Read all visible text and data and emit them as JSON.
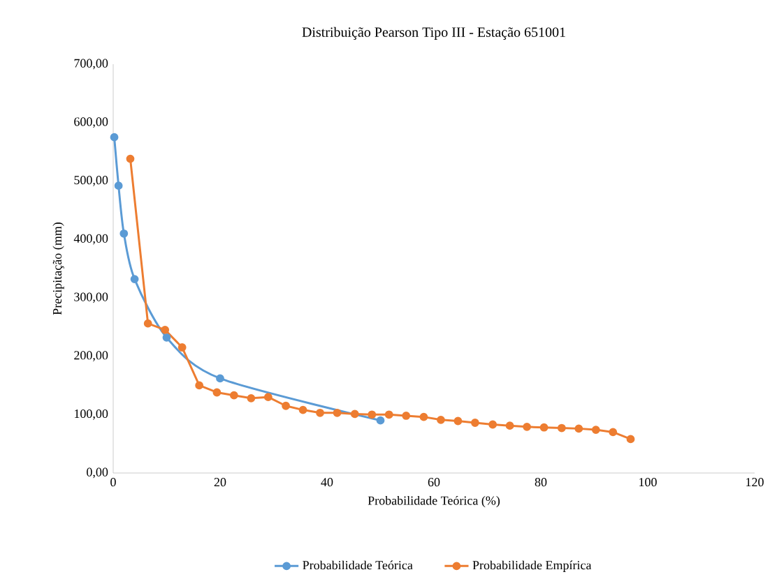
{
  "chart_data": {
    "type": "line",
    "title": "Distribuição Pearson Tipo III - Estação 651001",
    "xlabel": "Probabilidade Teórica (%)",
    "ylabel": "Precipitação (mm)",
    "xlim": [
      0,
      120
    ],
    "xticks": [
      0,
      20,
      40,
      60,
      80,
      100,
      120
    ],
    "ylim": [
      0,
      700
    ],
    "yticks": [
      {
        "value": 0,
        "label": "0,00"
      },
      {
        "value": 100,
        "label": "100,00"
      },
      {
        "value": 200,
        "label": "200,00"
      },
      {
        "value": 300,
        "label": "300,00"
      },
      {
        "value": 400,
        "label": "400,00"
      },
      {
        "value": 500,
        "label": "500,00"
      },
      {
        "value": 600,
        "label": "600,00"
      },
      {
        "value": 700,
        "label": "700,00"
      }
    ],
    "grid": false,
    "legend": "bottom",
    "marker": "circle",
    "series": [
      {
        "name": "Probabilidade Teórica",
        "color": "#5b9bd5",
        "x": [
          0.2,
          1,
          2,
          4,
          10,
          20,
          50
        ],
        "values": [
          575,
          492,
          410,
          332,
          232,
          162,
          90
        ]
      },
      {
        "name": "Probabilidade Empírica",
        "color": "#ed7d31",
        "x": [
          3.2,
          6.5,
          9.7,
          12.9,
          16.1,
          19.4,
          22.6,
          25.8,
          29.0,
          32.3,
          35.5,
          38.7,
          41.9,
          45.2,
          48.4,
          51.6,
          54.8,
          58.1,
          61.3,
          64.5,
          67.7,
          71.0,
          74.2,
          77.4,
          80.6,
          83.9,
          87.1,
          90.3,
          93.5,
          96.8
        ],
        "values": [
          538,
          256,
          245,
          215,
          150,
          138,
          133,
          128,
          130,
          115,
          108,
          103,
          103,
          101,
          100,
          100,
          98,
          96,
          91,
          89,
          86,
          83,
          81,
          79,
          78,
          77,
          76,
          74,
          70,
          58
        ]
      }
    ]
  }
}
